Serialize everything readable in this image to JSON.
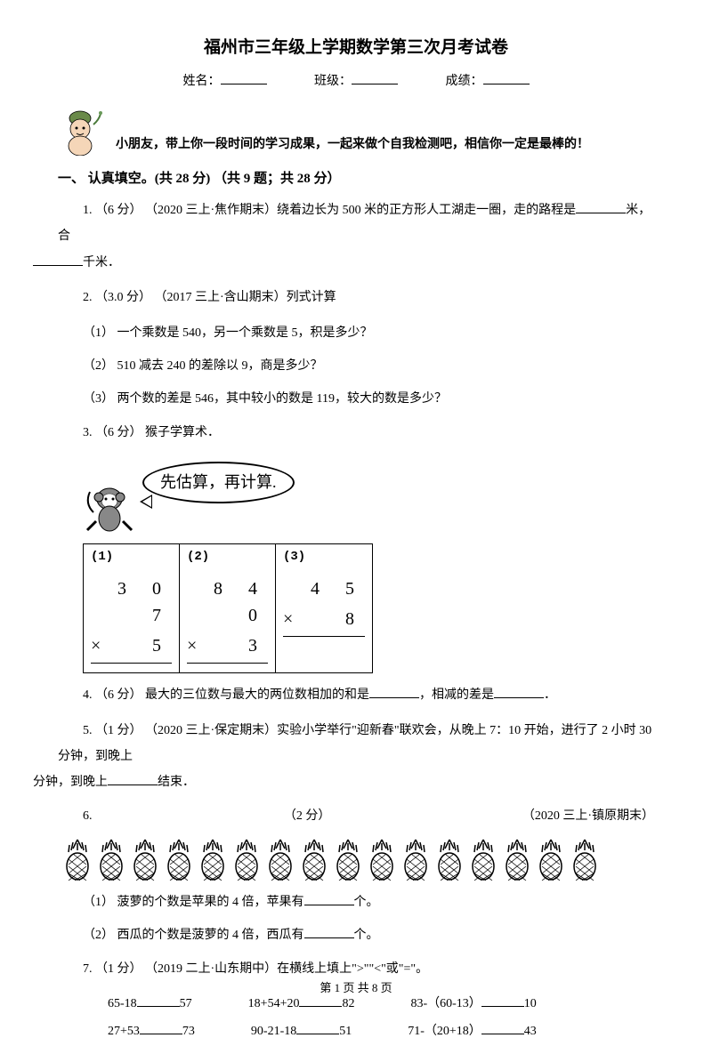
{
  "title": "福州市三年级上学期数学第三次月考试卷",
  "form": {
    "name_label": "姓名：",
    "class_label": "班级：",
    "score_label": "成绩："
  },
  "intro": "小朋友，带上你一段时间的学习成果，一起来做个自我检测吧，相信你一定是最棒的！",
  "section1": {
    "header": "一、 认真填空。(共 28 分) （共 9 题；共 28 分）"
  },
  "q1": {
    "prefix": "1. （6 分） （2020 三上·焦作期末）绕着边长为 500 米的正方形人工湖走一圈，走的路程是",
    "mid": "米，合",
    "suffix": "千米．"
  },
  "q2": {
    "head": "2. （3.0 分） （2017 三上·含山期末）列式计算",
    "s1": "（1） 一个乘数是 540，另一个乘数是 5，积是多少？",
    "s2": "（2） 510 减去 240 的差除以 9，商是多少？",
    "s3": "（3） 两个数的差是 546，其中较小的数是 119，较大的数是多少？"
  },
  "q3": {
    "head": "3. （6 分） 猴子学算术．",
    "bubble": "先估算，再计算.",
    "cells": [
      {
        "label": "(1)",
        "top": "3 0 7",
        "op": "×",
        "bot": "5"
      },
      {
        "label": "(2)",
        "top": "8 4 0",
        "op": "×",
        "bot": "3"
      },
      {
        "label": "(3)",
        "top": "4 5",
        "op": "×",
        "bot": "8"
      }
    ]
  },
  "q4": {
    "prefix": "4. （6 分） 最大的三位数与最大的两位数相加的和是",
    "mid": "，相减的差是",
    "suffix": "．"
  },
  "q5": {
    "prefix": "5. （1 分） （2020 三上·保定期末）实验小学举行\"迎新春\"联欢会，从晚上 7：10 开始，进行了 2 小时 30 分钟，到晚上",
    "suffix": "结束．"
  },
  "q6": {
    "left": "6.",
    "mid": "（2 分）",
    "right": "（2020 三上·镇原期末）",
    "pineapple_count": 16,
    "s1_a": "（1） 菠萝的个数是苹果的 4 倍，苹果有",
    "s1_b": "个。",
    "s2_a": "（2） 西瓜的个数是菠萝的 4 倍，西瓜有",
    "s2_b": "个。"
  },
  "q7": {
    "head": "7. （1 分） （2019 二上·山东期中）在横线上填上\">\"\"<\"或\"=\"。",
    "row1": [
      {
        "l": "65-18",
        "r": "57"
      },
      {
        "l": "18+54+20",
        "r": "82"
      },
      {
        "l": "83-（60-13）",
        "r": "10"
      }
    ],
    "row2": [
      {
        "l": "27+53",
        "r": "73"
      },
      {
        "l": "90-21-18",
        "r": "51"
      },
      {
        "l": "71-（20+18）",
        "r": "43"
      }
    ]
  },
  "footer": "第 1 页 共 8 页",
  "colors": {
    "text": "#000000",
    "bg": "#ffffff"
  }
}
